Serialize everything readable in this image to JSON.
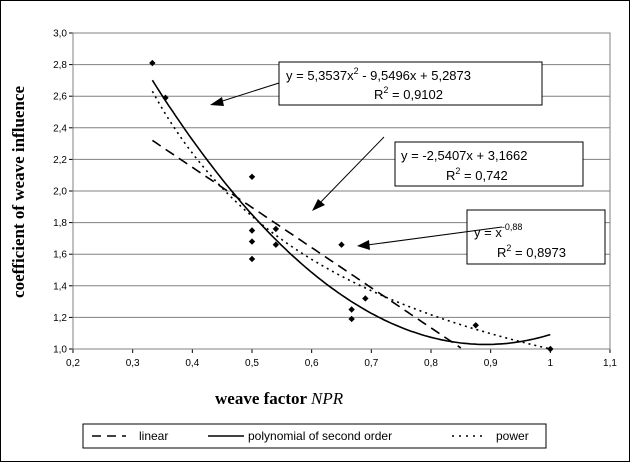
{
  "chart_data": {
    "type": "scatter",
    "xlabel": "weave factor",
    "xlabel_symbol": "NPR",
    "ylabel": "coefficient of weave influence",
    "xlim": [
      0.2,
      1.1
    ],
    "ylim": [
      1.0,
      3.0
    ],
    "x_ticks": [
      "0,2",
      "0,3",
      "0,4",
      "0,5",
      "0,6",
      "0,7",
      "0,8",
      "0,9",
      "1",
      "1,1"
    ],
    "y_ticks": [
      "1,0",
      "1,2",
      "1,4",
      "1,6",
      "1,8",
      "2,0",
      "2,2",
      "2,4",
      "2,6",
      "2,8",
      "3,0"
    ],
    "grid": true,
    "points": [
      {
        "x": 0.333,
        "y": 2.81
      },
      {
        "x": 0.355,
        "y": 2.59
      },
      {
        "x": 0.5,
        "y": 2.09
      },
      {
        "x": 0.5,
        "y": 1.75
      },
      {
        "x": 0.5,
        "y": 1.68
      },
      {
        "x": 0.5,
        "y": 1.57
      },
      {
        "x": 0.54,
        "y": 1.76
      },
      {
        "x": 0.54,
        "y": 1.66
      },
      {
        "x": 0.65,
        "y": 1.66
      },
      {
        "x": 0.667,
        "y": 1.25
      },
      {
        "x": 0.667,
        "y": 1.19
      },
      {
        "x": 0.69,
        "y": 1.32
      },
      {
        "x": 0.875,
        "y": 1.15
      },
      {
        "x": 1.0,
        "y": 1.0
      }
    ],
    "fits": [
      {
        "kind": "polynomial",
        "name": "polynomial of second order",
        "coeffs": [
          5.3537,
          -9.5496,
          5.2873
        ],
        "x_range": [
          0.333,
          1.0
        ],
        "equation": "y = 5,3537x² - 9,5496x + 5,2873",
        "r2": "R² = 0,9102"
      },
      {
        "kind": "linear",
        "name": "linear",
        "coeffs": [
          -2.5407,
          3.1662
        ],
        "x_range": [
          0.333,
          1.0
        ],
        "equation": "y = -2,5407x + 3,1662",
        "r2": "R² = 0,742"
      },
      {
        "kind": "power",
        "name": "power",
        "coeffs": [
          1.0,
          -0.88
        ],
        "x_range": [
          0.333,
          1.0
        ],
        "equation": "y = x^-0,88",
        "r2": "R² = 0,8973"
      }
    ],
    "legend_position": "bottom",
    "legend": [
      "linear",
      "polynomial of second order",
      "power"
    ]
  },
  "labels": {
    "poly_eq_prefix": "y = 5,3537x",
    "poly_eq_sup": "2",
    "poly_eq_suffix": " - 9,5496x + 5,2873",
    "poly_r2_prefix": "R",
    "poly_r2_sup": "2",
    "poly_r2_suffix": " = 0,9102",
    "lin_eq": "y = -2,5407x + 3,1662",
    "lin_r2_prefix": "R",
    "lin_r2_sup": "2",
    "lin_r2_suffix": " = 0,742",
    "pow_eq_prefix": "y = x",
    "pow_eq_sup": "-0,88",
    "pow_r2_prefix": "R",
    "pow_r2_sup": "2",
    "pow_r2_suffix": " = 0,8973",
    "xlabel_text": "weave factor  ",
    "xlabel_symbol": "NPR",
    "ylabel_text": "coefficient of weave influence",
    "legend_linear": "linear",
    "legend_poly": "polynomial of second order",
    "legend_power": "power"
  }
}
